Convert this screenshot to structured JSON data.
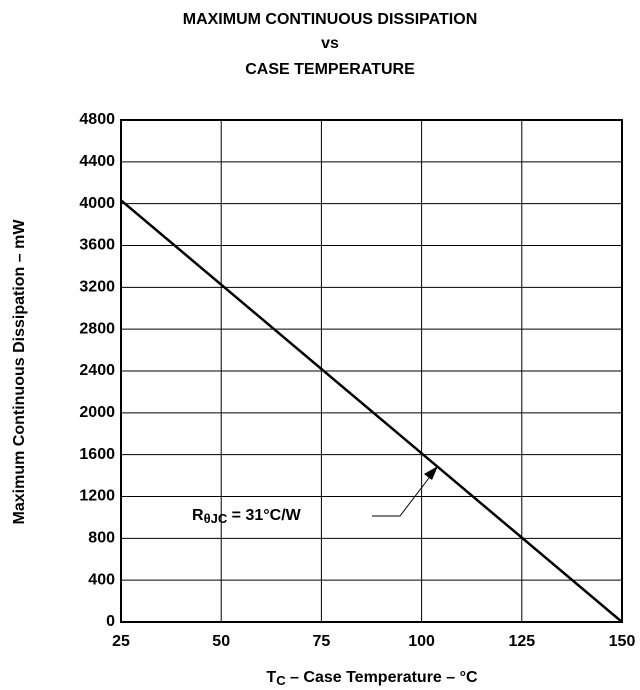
{
  "chart_data": {
    "type": "line",
    "title": [
      "MAXIMUM CONTINUOUS DISSIPATION",
      "vs",
      "CASE TEMPERATURE"
    ],
    "xlabel": [
      "T",
      "C",
      " – Case Temperature – °C"
    ],
    "ylabel": "Maximum Continuous Dissipation – mW",
    "annotation": [
      "R",
      "θJC",
      " = 31°C/W"
    ],
    "x": [
      25,
      150
    ],
    "series": [
      {
        "color": "#000000",
        "values": [
          4032,
          0
        ]
      }
    ],
    "xlim": [
      25,
      150
    ],
    "xticks": [
      25,
      50,
      75,
      100,
      125,
      150
    ],
    "ylim": [
      0,
      4800
    ],
    "yticks": [
      0,
      400,
      800,
      1200,
      1600,
      2000,
      2400,
      2800,
      3200,
      3600,
      4000,
      4400,
      4800
    ],
    "grid": true
  }
}
